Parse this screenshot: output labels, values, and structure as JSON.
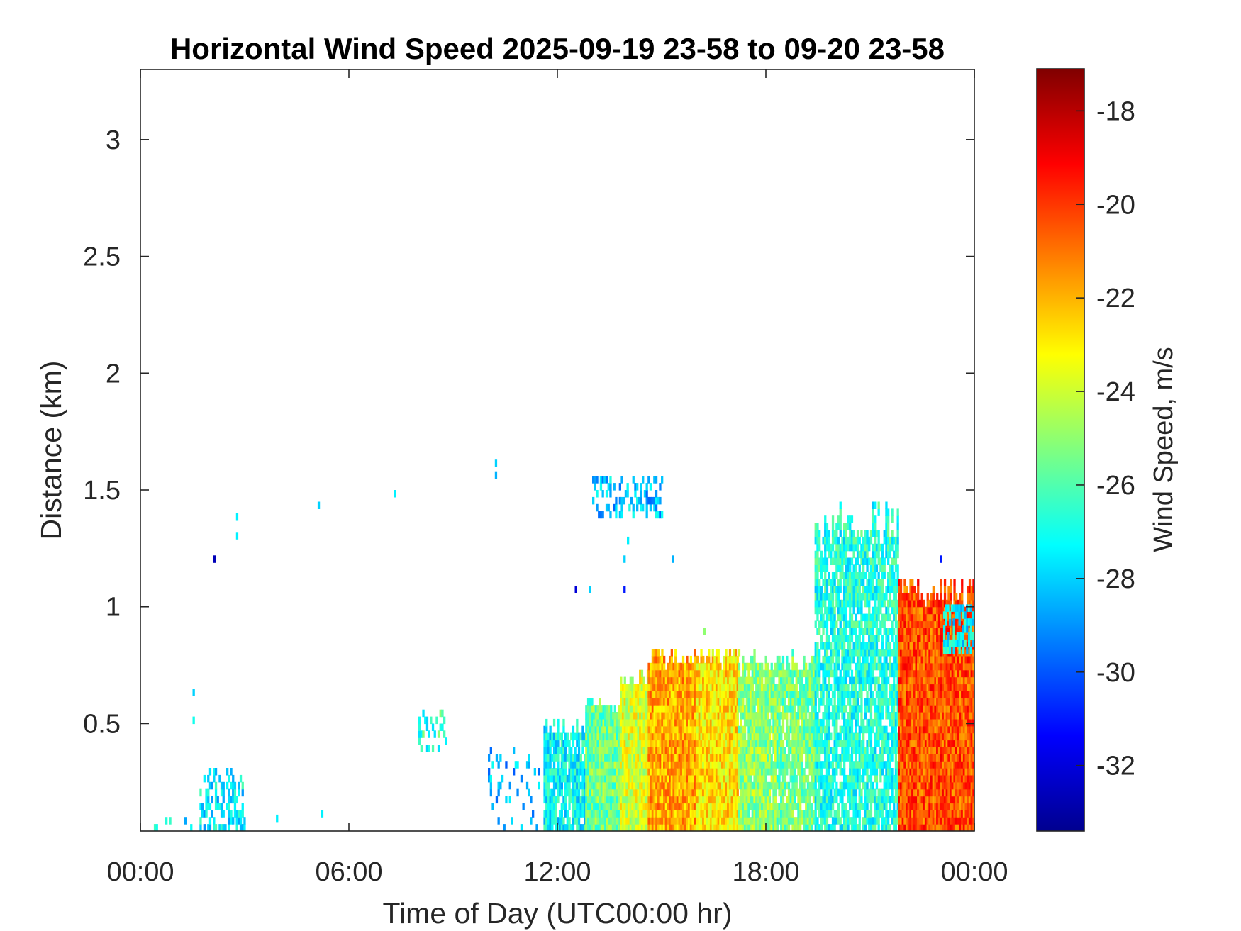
{
  "chart_data": {
    "type": "heatmap",
    "title": "Horizontal Wind Speed 2025-09-19 23-58 to 09-20 23-58",
    "xlabel": "Time of Day (UTC00:00 hr)",
    "ylabel": "Distance (km)",
    "x_ticks": [
      "00:00",
      "06:00",
      "12:00",
      "18:00",
      "00:00"
    ],
    "x_tick_hours": [
      0,
      6,
      12,
      18,
      24
    ],
    "xlim_hours": [
      0,
      24
    ],
    "y_ticks": [
      "0.5",
      "1",
      "1.5",
      "2",
      "2.5",
      "3"
    ],
    "y_tick_values": [
      0.5,
      1,
      1.5,
      2,
      2.5,
      3
    ],
    "ylim_km": [
      0.04,
      3.3
    ],
    "colorbar": {
      "label": "Wind Speed, m/s",
      "ticks": [
        "-18",
        "-20",
        "-22",
        "-24",
        "-26",
        "-28",
        "-30",
        "-32"
      ],
      "tick_values": [
        -18,
        -20,
        -22,
        -24,
        -26,
        -28,
        -30,
        -32
      ],
      "clim": [
        -33.4,
        -17.1
      ],
      "colormap": "jet"
    },
    "regions": [
      {
        "hours": [
          0,
          1.5
        ],
        "top_km": 0.08,
        "wind_speed": -27.5,
        "density": 0.15
      },
      {
        "hours": [
          1.7,
          3.0
        ],
        "top_km": 0.3,
        "wind_speed": -27.5,
        "density": 0.45
      },
      {
        "hours": [
          8.0,
          8.8
        ],
        "top_km": 0.55,
        "bottom_km": 0.38,
        "wind_speed": -26.5,
        "density": 0.4
      },
      {
        "hours": [
          10.0,
          11.5
        ],
        "top_km": 0.4,
        "wind_speed": -28.5,
        "density": 0.15
      },
      {
        "hours": [
          11.6,
          12.8
        ],
        "top_km": 0.5,
        "wind_speed": -27.3,
        "density": 0.85
      },
      {
        "hours": [
          12.8,
          13.8
        ],
        "top_km": 0.6,
        "wind_speed": -25.5,
        "density": 1.0
      },
      {
        "hours": [
          13.8,
          14.6
        ],
        "top_km": 0.72,
        "wind_speed": -23.8,
        "density": 1.0
      },
      {
        "hours": [
          14.6,
          16.0
        ],
        "top_km": 0.82,
        "wind_speed": -21.8,
        "density": 1.0
      },
      {
        "hours": [
          16.0,
          17.2
        ],
        "top_km": 0.82,
        "wind_speed": -22.8,
        "density": 1.0
      },
      {
        "hours": [
          17.2,
          18.3
        ],
        "top_km": 0.8,
        "wind_speed": -25.0,
        "density": 0.95
      },
      {
        "hours": [
          18.3,
          19.4
        ],
        "top_km": 0.8,
        "wind_speed": -25.5,
        "density": 0.9
      },
      {
        "hours": [
          19.4,
          21.8
        ],
        "top_km": 1.45,
        "wind_speed": -26.8,
        "density": 0.8
      },
      {
        "hours": [
          21.8,
          24.0
        ],
        "top_km": 1.12,
        "wind_speed": -20.4,
        "density": 1.0
      },
      {
        "hours": [
          23.1,
          24.0
        ],
        "top_km": 1.0,
        "bottom_km": 0.8,
        "wind_speed": -27.5,
        "density": 0.7
      },
      {
        "hours": [
          13.0,
          15.0
        ],
        "top_km": 1.55,
        "bottom_km": 1.38,
        "wind_speed": -28.3,
        "density": 0.35
      }
    ],
    "isolated_points": [
      {
        "hour": 2.1,
        "km": 1.19,
        "wind_speed": -32.5
      },
      {
        "hour": 2.75,
        "km": 1.37,
        "wind_speed": -27.5
      },
      {
        "hour": 2.75,
        "km": 1.29,
        "wind_speed": -27.5
      },
      {
        "hour": 5.1,
        "km": 1.42,
        "wind_speed": -28.0
      },
      {
        "hour": 7.3,
        "km": 1.47,
        "wind_speed": -27.5
      },
      {
        "hour": 10.2,
        "km": 1.6,
        "wind_speed": -28.0
      },
      {
        "hour": 10.2,
        "km": 1.55,
        "wind_speed": -28.5
      },
      {
        "hour": 12.5,
        "km": 1.06,
        "wind_speed": -32.0
      },
      {
        "hour": 12.9,
        "km": 1.06,
        "wind_speed": -28.0
      },
      {
        "hour": 13.9,
        "km": 1.06,
        "wind_speed": -31.0
      },
      {
        "hour": 13.9,
        "km": 1.19,
        "wind_speed": -28.0
      },
      {
        "hour": 14.0,
        "km": 1.27,
        "wind_speed": -27.5
      },
      {
        "hour": 15.3,
        "km": 1.19,
        "wind_speed": -28.5
      },
      {
        "hour": 1.5,
        "km": 0.62,
        "wind_speed": -28.0
      },
      {
        "hour": 1.5,
        "km": 0.5,
        "wind_speed": -27.0
      },
      {
        "hour": 3.9,
        "km": 0.08,
        "wind_speed": -27.5
      },
      {
        "hour": 5.2,
        "km": 0.1,
        "wind_speed": -27.5
      },
      {
        "hour": 16.2,
        "km": 0.88,
        "wind_speed": -25.0
      },
      {
        "hour": 23.0,
        "km": 1.19,
        "wind_speed": -31.0
      }
    ]
  }
}
